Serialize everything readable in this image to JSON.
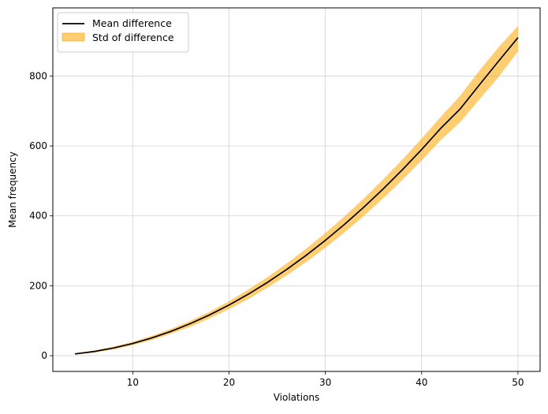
{
  "chart_data": {
    "type": "line",
    "xlabel": "Violations",
    "ylabel": "Mean frequency",
    "xlim": [
      1.7,
      52.3
    ],
    "ylim": [
      -45,
      995
    ],
    "xticks": [
      10,
      20,
      30,
      40,
      50
    ],
    "yticks": [
      0,
      200,
      400,
      600,
      800
    ],
    "grid": true,
    "legend_position": "top-left",
    "x": [
      4,
      6,
      8,
      10,
      12,
      14,
      16,
      18,
      20,
      22,
      24,
      26,
      28,
      30,
      32,
      34,
      36,
      38,
      40,
      42,
      44,
      46,
      48,
      50
    ],
    "series": [
      {
        "name": "Mean difference",
        "kind": "line",
        "color": "#000000",
        "values": [
          5,
          12,
          22,
          35,
          51,
          70,
          92,
          117,
          145,
          176,
          210,
          247,
          287,
          330,
          376,
          425,
          477,
          532,
          590,
          651,
          706,
          775,
          843,
          910
        ]
      },
      {
        "name": "Std of difference",
        "kind": "band",
        "color": "#ffa500",
        "lower": [
          3,
          9,
          18,
          30,
          45,
          63,
          83,
          107,
          133,
          162,
          195,
          230,
          268,
          309,
          353,
          400,
          450,
          503,
          559,
          617,
          668,
          733,
          798,
          870
        ],
        "upper": [
          7,
          15,
          26,
          40,
          57,
          77,
          100,
          126,
          156,
          189,
          225,
          264,
          306,
          351,
          399,
          450,
          504,
          561,
          621,
          684,
          744,
          816,
          883,
          943
        ]
      }
    ]
  }
}
